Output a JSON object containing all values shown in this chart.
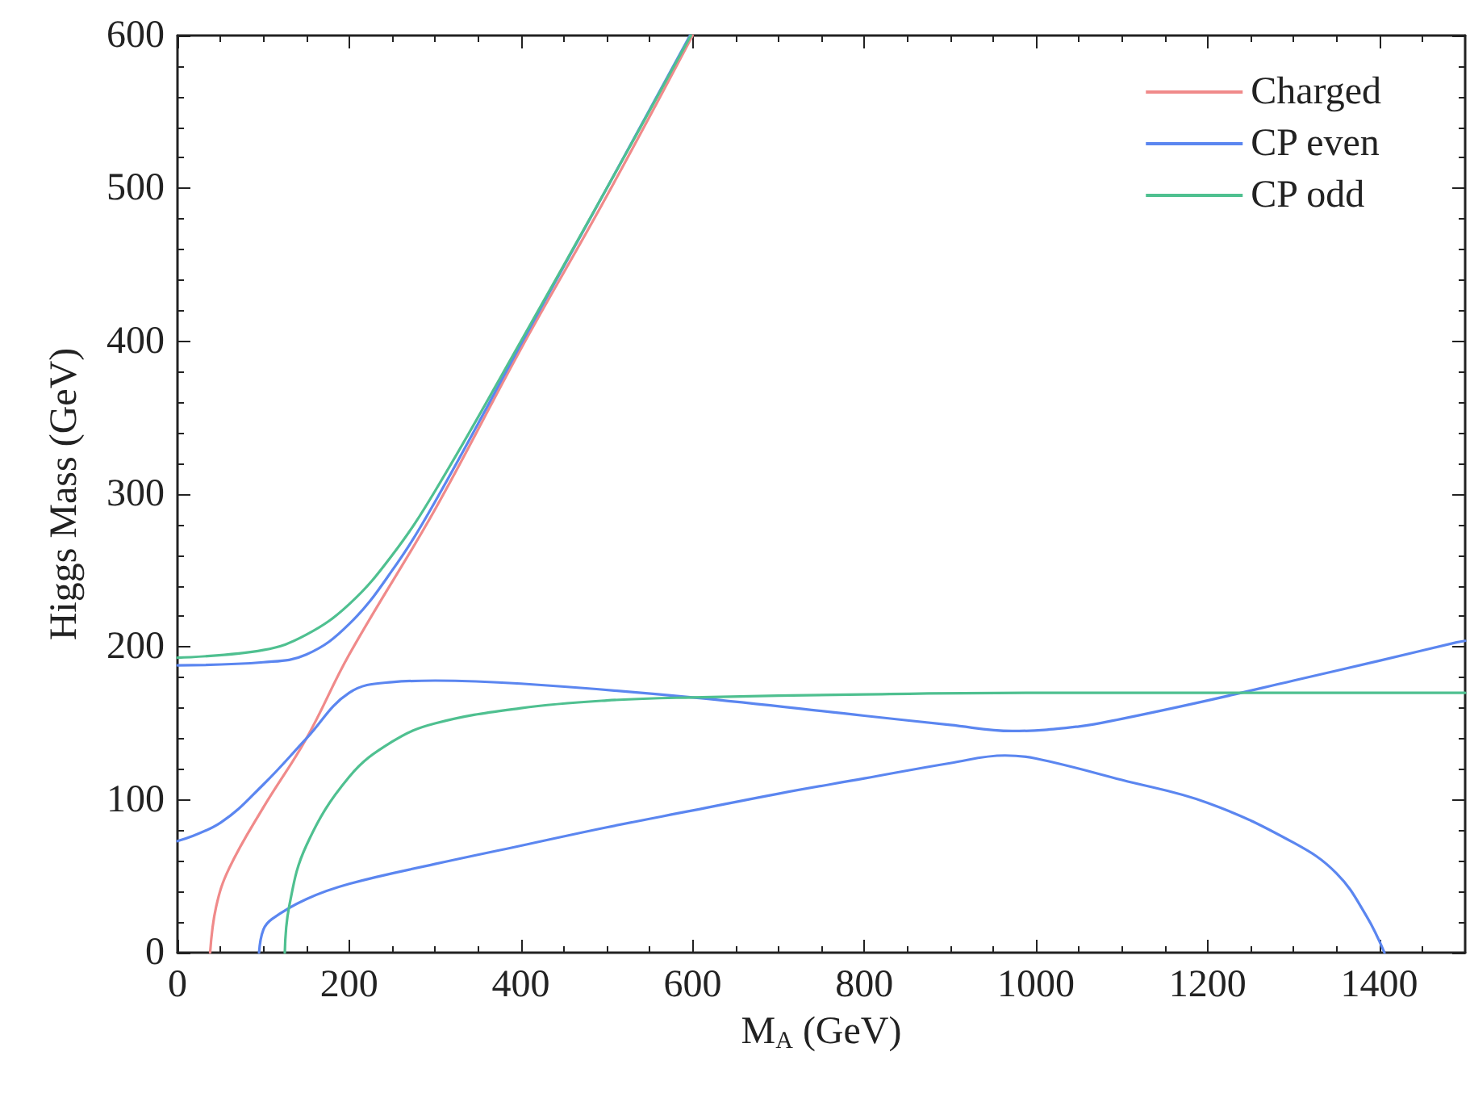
{
  "chart_data": {
    "type": "line",
    "xlabel": "M$_{A}$ (GeV)",
    "ylabel": "Higgs Mass (GeV)",
    "xlim": [
      0,
      1500
    ],
    "ylim": [
      0,
      600
    ],
    "xticks": [
      0,
      200,
      400,
      600,
      800,
      1000,
      1200,
      1400
    ],
    "yticks": [
      0,
      100,
      200,
      300,
      400,
      500,
      600
    ],
    "grid": false,
    "legend": "top right",
    "line_style": "solid",
    "series": [
      {
        "name": "Charged",
        "color": "#f08a8a",
        "x": [
          38,
          45,
          60,
          100,
          150,
          200,
          300,
          400,
          500,
          600
        ],
        "values": [
          0,
          30,
          55,
          95,
          140,
          195,
          290,
          395,
          495,
          600
        ]
      },
      {
        "name": "CP even",
        "color": "#5b86f0",
        "x": [
          0,
          100,
          150,
          200,
          250,
          300,
          400,
          500,
          597
        ],
        "values": [
          188,
          190,
          195,
          215,
          250,
          295,
          398,
          500,
          600
        ]
      },
      {
        "color": "#5b86f0",
        "x": [
          0,
          50,
          100,
          150,
          200,
          250,
          300,
          400,
          600,
          800,
          900,
          972,
          1050,
          1100,
          1200,
          1300,
          1400,
          1490,
          1500
        ],
        "values": [
          73,
          85,
          110,
          140,
          170,
          177,
          178,
          176,
          167,
          155,
          149,
          145,
          148,
          153,
          165,
          178,
          191,
          203,
          204
        ]
      },
      {
        "color": "#5b86f0",
        "x": [
          95,
          100,
          110,
          150,
          200,
          300,
          400,
          500,
          600,
          700,
          800,
          900,
          964,
          1000,
          1100,
          1200,
          1300,
          1350,
          1385,
          1406
        ],
        "values": [
          0,
          15,
          22,
          35,
          45,
          58,
          70,
          82,
          93,
          104,
          114,
          124,
          129,
          127,
          113,
          98,
          72,
          52,
          24,
          0
        ]
      },
      {
        "name": "CP odd",
        "color": "#4fc090",
        "x": [
          0,
          100,
          150,
          200,
          250,
          300,
          400,
          500,
          598
        ],
        "values": [
          193,
          198,
          208,
          228,
          260,
          302,
          400,
          500,
          600
        ]
      },
      {
        "color": "#4fc090",
        "x": [
          125,
          130,
          150,
          200,
          250,
          300,
          400,
          500,
          600,
          800,
          1000,
          1500
        ],
        "values": [
          0,
          30,
          70,
          115,
          138,
          150,
          160,
          165,
          167,
          169,
          170,
          170
        ]
      }
    ]
  }
}
